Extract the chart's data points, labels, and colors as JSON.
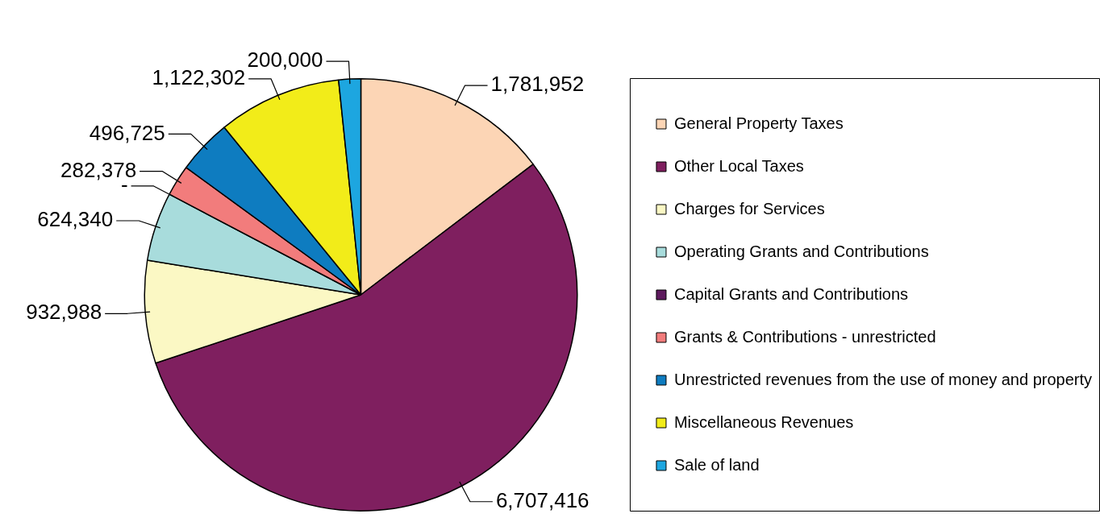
{
  "chart_data": {
    "type": "pie",
    "categories": [
      "General Property Taxes",
      "Other Local Taxes",
      "Charges for Services",
      "Operating Grants and Contributions",
      "Capital Grants and Contributions",
      "Grants & Contributions - unrestricted",
      "Unrestricted revenues from the use of money and property",
      "Miscellaneous Revenues",
      "Sale of land"
    ],
    "values": [
      1781952,
      6707416,
      932988,
      624340,
      0,
      282378,
      496725,
      1122302,
      200000
    ],
    "value_labels": [
      "1,781,952",
      "6,707,416",
      "932,988",
      "624,340",
      "-",
      "282,378",
      "496,725",
      "1,122,302",
      "200,000"
    ],
    "colors": [
      "#fcd5b5",
      "#7f1f5f",
      "#fbf8c4",
      "#a8dcdc",
      "#5e1a5e",
      "#f27c7c",
      "#0e7cc0",
      "#f2ec19",
      "#1da6e0"
    ],
    "legend": "right"
  }
}
